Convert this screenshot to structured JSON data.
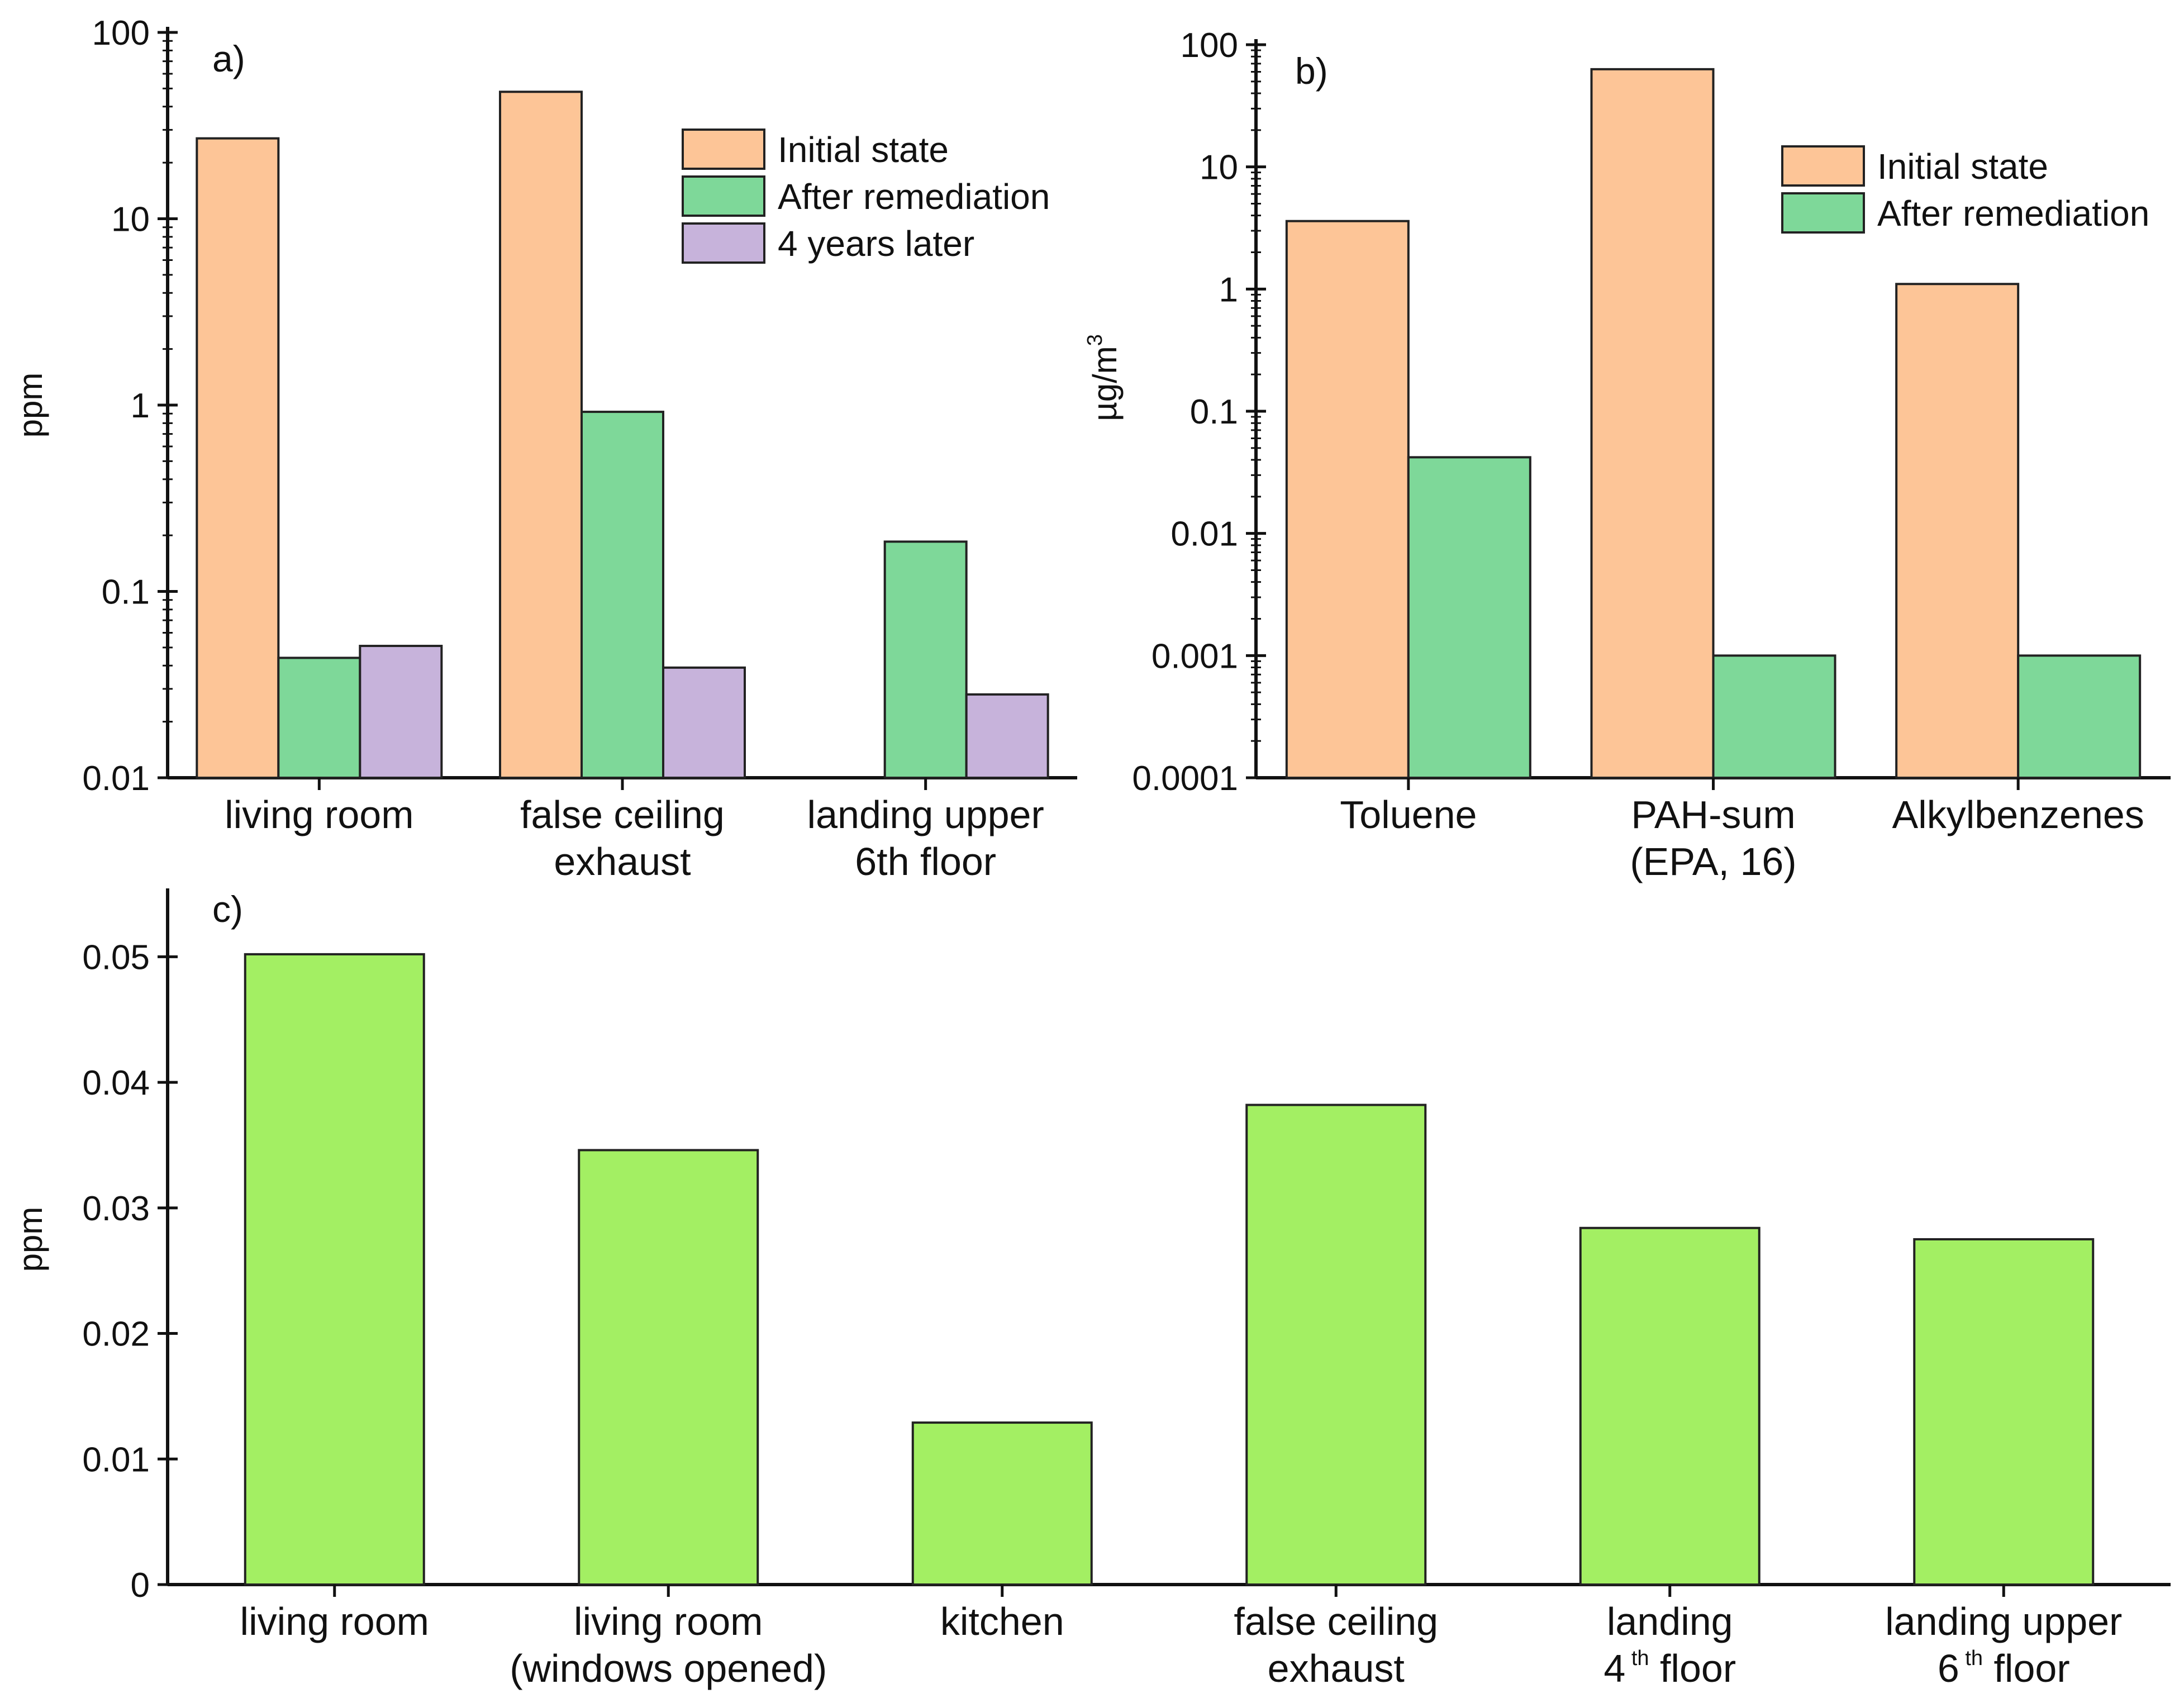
{
  "chart_data": [
    {
      "panel": "a)",
      "type": "bar",
      "scale": "log",
      "ylabel": "ppm",
      "ylim": [
        0.01,
        100
      ],
      "ytick_labels": [
        "0.01",
        "0.1",
        "1",
        "10",
        "100"
      ],
      "ytick_values": [
        0.01,
        0.1,
        1,
        10,
        100
      ],
      "categories": [
        {
          "lines": [
            "living room"
          ]
        },
        {
          "lines": [
            "false ceiling",
            "exhaust"
          ]
        },
        {
          "lines": [
            "landing upper",
            "6th floor"
          ]
        }
      ],
      "series": [
        {
          "name": "Initial state",
          "color": "#FDC597",
          "values": [
            27,
            48,
            null
          ]
        },
        {
          "name": "After remediation",
          "color": "#7ED899",
          "values": [
            0.044,
            0.92,
            0.185
          ]
        },
        {
          "name": "4 years later",
          "color": "#C7B3DB",
          "values": [
            0.051,
            0.039,
            0.028
          ]
        }
      ],
      "legend_position": "top-right"
    },
    {
      "panel": "b)",
      "type": "bar",
      "scale": "log",
      "ylabel_base": "µg/m",
      "ylabel_sup": "3",
      "ylim": [
        0.0001,
        100
      ],
      "ytick_labels": [
        "0.0001",
        "0.001",
        "0.01",
        "0.1",
        "1",
        "10",
        "100"
      ],
      "ytick_values": [
        0.0001,
        0.001,
        0.01,
        0.1,
        1,
        10,
        100
      ],
      "categories": [
        {
          "lines": [
            "Toluene"
          ]
        },
        {
          "lines": [
            "PAH-sum",
            "(EPA, 16)"
          ]
        },
        {
          "lines": [
            "Alkylbenzenes"
          ]
        }
      ],
      "series": [
        {
          "name": "Initial state",
          "color": "#FDC597",
          "values": [
            3.6,
            63,
            1.1
          ]
        },
        {
          "name": "After remediation",
          "color": "#7ED899",
          "values": [
            0.042,
            0.001,
            0.001
          ]
        }
      ],
      "legend_position": "top-right"
    },
    {
      "panel": "c)",
      "type": "bar",
      "scale": "linear",
      "ylabel": "ppm",
      "ylim": [
        0,
        0.055
      ],
      "ytick_labels": [
        "0",
        "0.01",
        "0.02",
        "0.03",
        "0.04",
        "0.05"
      ],
      "ytick_values": [
        0,
        0.01,
        0.02,
        0.03,
        0.04,
        0.05
      ],
      "categories": [
        {
          "lines": [
            "living room"
          ]
        },
        {
          "lines": [
            "living room",
            "(windows opened)"
          ]
        },
        {
          "lines": [
            "kitchen"
          ]
        },
        {
          "lines": [
            "false ceiling",
            "exhaust"
          ]
        },
        {
          "lines": [
            "landing",
            "4| th| floor"
          ]
        },
        {
          "lines": [
            "landing upper",
            "6| th| floor"
          ]
        }
      ],
      "series": [
        {
          "name": "",
          "color": "#A3EF63",
          "values": [
            0.0502,
            0.0346,
            0.0129,
            0.0382,
            0.0284,
            0.0275
          ]
        }
      ]
    }
  ]
}
